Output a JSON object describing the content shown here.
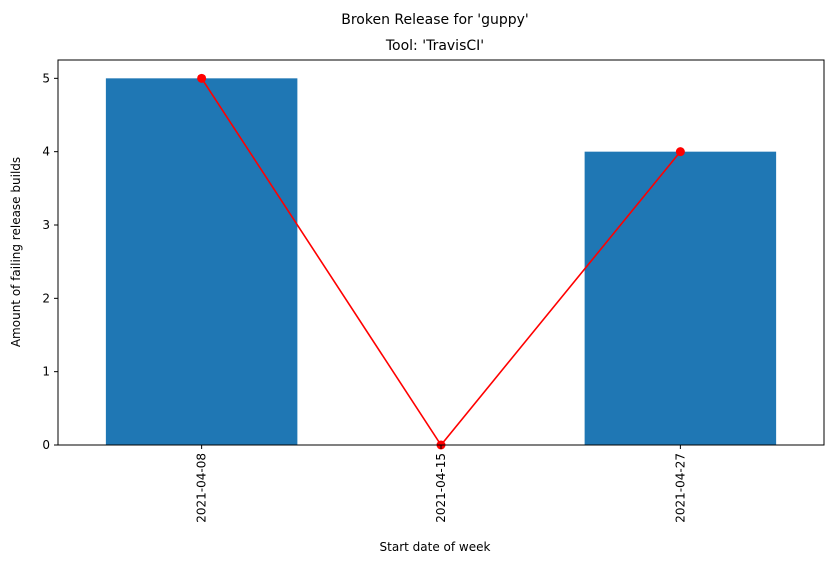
{
  "chart_data": {
    "type": "bar",
    "title": "Broken Release for 'guppy'",
    "subtitle": "Tool: 'TravisCI'",
    "xlabel": "Start date of week",
    "ylabel": "Amount of failing release builds",
    "categories": [
      "2021-04-08",
      "2021-04-15",
      "2021-04-27"
    ],
    "values": [
      5,
      0,
      4
    ],
    "line_values": [
      5,
      0,
      4
    ],
    "ylim": [
      0,
      5.25
    ],
    "yticks": [
      0,
      1,
      2,
      3,
      4,
      5
    ],
    "grid": false,
    "bar_color": "#1f77b4",
    "line_color": "#ff0000"
  }
}
